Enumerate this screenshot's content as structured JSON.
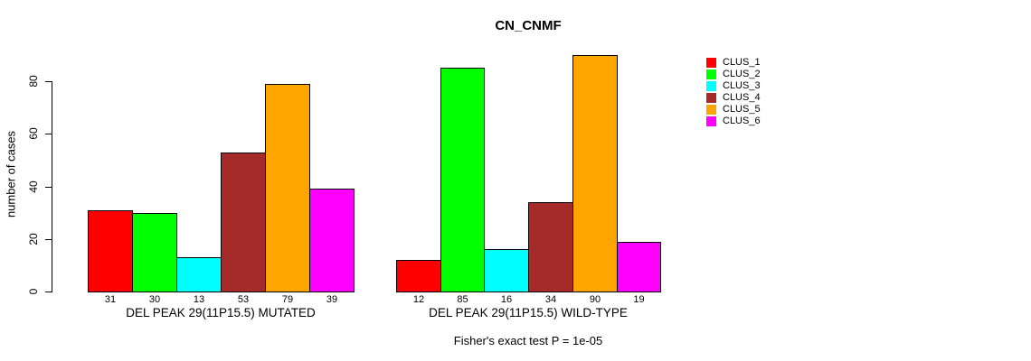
{
  "chart_data": {
    "type": "bar",
    "title": "CN_CNMF",
    "ylabel": "number of cases",
    "ylim": [
      0,
      90
    ],
    "yticks": [
      0,
      20,
      40,
      60,
      80
    ],
    "grid": false,
    "legend_position": "right-outside",
    "clusters": [
      "CLUS_1",
      "CLUS_2",
      "CLUS_3",
      "CLUS_4",
      "CLUS_5",
      "CLUS_6"
    ],
    "colors": [
      "#ff0000",
      "#00ff00",
      "#00ffff",
      "#a52a2a",
      "#ffa500",
      "#ff00ff"
    ],
    "groups": [
      {
        "label": "DEL PEAK 29(11P15.5) MUTATED",
        "values": [
          31,
          30,
          13,
          53,
          79,
          39
        ]
      },
      {
        "label": "DEL PEAK 29(11P15.5) WILD-TYPE",
        "values": [
          12,
          85,
          16,
          34,
          90,
          19
        ]
      }
    ],
    "annotation": "Fisher's exact test P = 1e-05"
  }
}
